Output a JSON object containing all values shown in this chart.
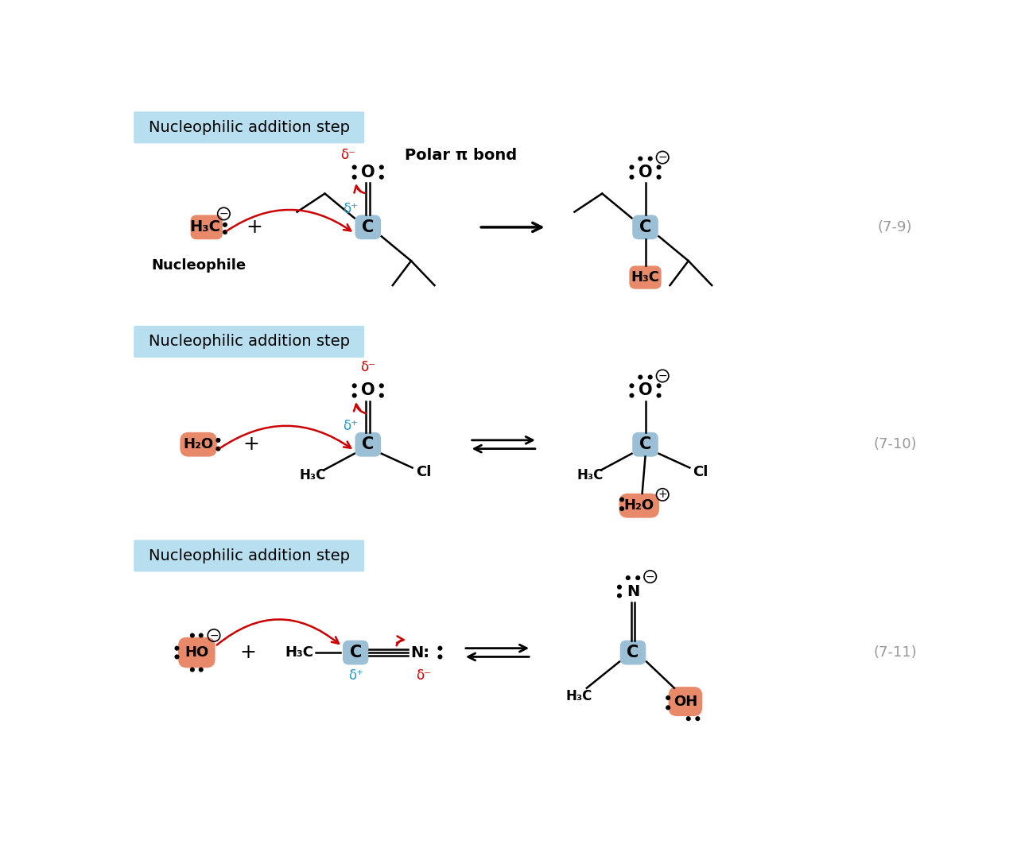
{
  "bg_color": "#ffffff",
  "header_bg": "#b8dff0",
  "header_text": "Nucleophilic addition step",
  "header_fontsize": 14,
  "salmon_color": "#E8896A",
  "blue_color": "#9BBFD4",
  "red_color": "#CC0000",
  "cyan_color": "#2299CC",
  "black_color": "#000000",
  "gray_color": "#999999",
  "reaction1_label": "(7-9)",
  "reaction2_label": "(7-10)",
  "reaction3_label": "(7-11)"
}
